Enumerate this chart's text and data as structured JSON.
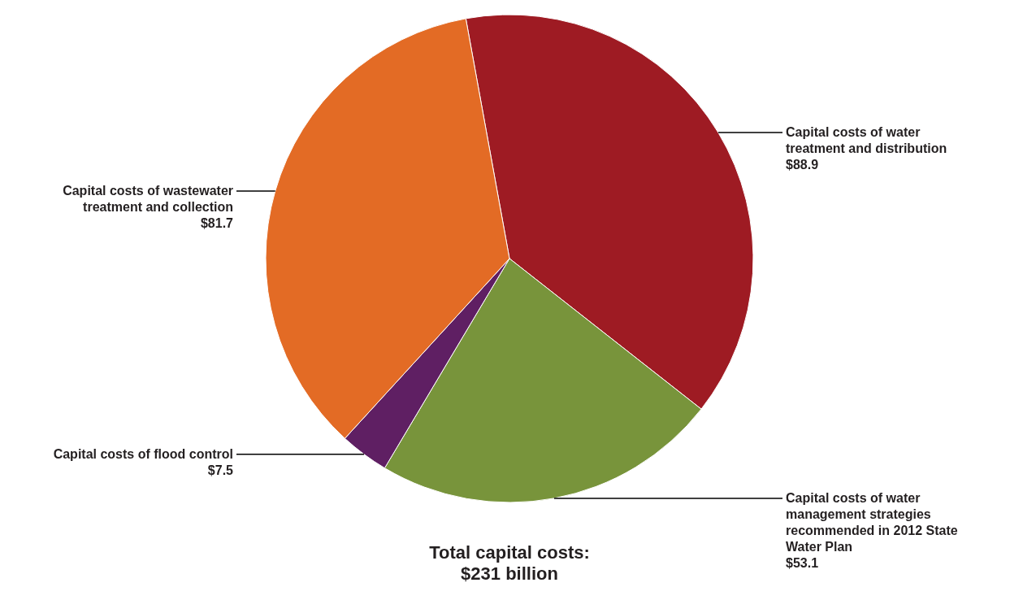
{
  "chart_data": {
    "type": "pie",
    "categories": [
      "Capital costs of water treatment and distribution",
      "Capital costs of water management strategies recommended in 2012 State Water Plan",
      "Capital costs of flood control",
      "Capital costs of wastewater treatment and collection"
    ],
    "values": [
      88.9,
      53.1,
      7.5,
      81.7
    ],
    "colors": [
      "#9e1b23",
      "#78943b",
      "#5f1f63",
      "#e36b25"
    ],
    "value_labels": [
      "$88.9",
      "$53.1",
      "$7.5",
      "$81.7"
    ],
    "annotations": [
      "Total capital costs: $231 billion"
    ]
  }
}
